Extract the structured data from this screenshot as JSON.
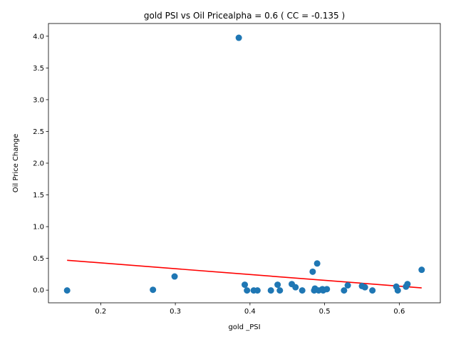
{
  "chart_data": {
    "type": "scatter",
    "title": "gold  PSI vs Oil Pricealpha = 0.6 ( CC = -0.135 )",
    "xlabel": "gold _PSI",
    "ylabel": "Oil Price Change",
    "xlim": [
      0.13,
      0.655
    ],
    "ylim": [
      -0.2,
      4.2
    ],
    "xticks": [
      0.2,
      0.3,
      0.4,
      0.5,
      0.6
    ],
    "xtick_labels": [
      "0.2",
      "0.3",
      "0.4",
      "0.5",
      "0.6"
    ],
    "yticks": [
      0.0,
      0.5,
      1.0,
      1.5,
      2.0,
      2.5,
      3.0,
      3.5,
      4.0
    ],
    "ytick_labels": [
      "0.0",
      "0.5",
      "1.0",
      "1.5",
      "2.0",
      "2.5",
      "3.0",
      "3.5",
      "4.0"
    ],
    "grid": false,
    "points_color": "#1f77b4",
    "fit_color": "#ff0000",
    "points": [
      {
        "x": 0.155,
        "y": -0.005
      },
      {
        "x": 0.27,
        "y": 0.005
      },
      {
        "x": 0.299,
        "y": 0.215
      },
      {
        "x": 0.385,
        "y": 3.975
      },
      {
        "x": 0.393,
        "y": 0.085
      },
      {
        "x": 0.396,
        "y": -0.005
      },
      {
        "x": 0.405,
        "y": -0.005
      },
      {
        "x": 0.41,
        "y": -0.005
      },
      {
        "x": 0.428,
        "y": -0.005
      },
      {
        "x": 0.437,
        "y": 0.085
      },
      {
        "x": 0.44,
        "y": -0.005
      },
      {
        "x": 0.456,
        "y": 0.095
      },
      {
        "x": 0.461,
        "y": 0.045
      },
      {
        "x": 0.47,
        "y": -0.005
      },
      {
        "x": 0.484,
        "y": 0.29
      },
      {
        "x": 0.486,
        "y": -0.005
      },
      {
        "x": 0.487,
        "y": 0.025
      },
      {
        "x": 0.49,
        "y": 0.42
      },
      {
        "x": 0.492,
        "y": -0.005
      },
      {
        "x": 0.497,
        "y": 0.015
      },
      {
        "x": 0.498,
        "y": -0.005
      },
      {
        "x": 0.503,
        "y": 0.015
      },
      {
        "x": 0.526,
        "y": -0.005
      },
      {
        "x": 0.531,
        "y": 0.075
      },
      {
        "x": 0.55,
        "y": 0.065
      },
      {
        "x": 0.554,
        "y": 0.045
      },
      {
        "x": 0.564,
        "y": -0.005
      },
      {
        "x": 0.596,
        "y": 0.055
      },
      {
        "x": 0.598,
        "y": -0.005
      },
      {
        "x": 0.609,
        "y": 0.055
      },
      {
        "x": 0.611,
        "y": 0.095
      },
      {
        "x": 0.63,
        "y": 0.32
      }
    ],
    "fit_line": {
      "x": [
        0.155,
        0.63
      ],
      "y": [
        0.47,
        0.035
      ]
    }
  }
}
